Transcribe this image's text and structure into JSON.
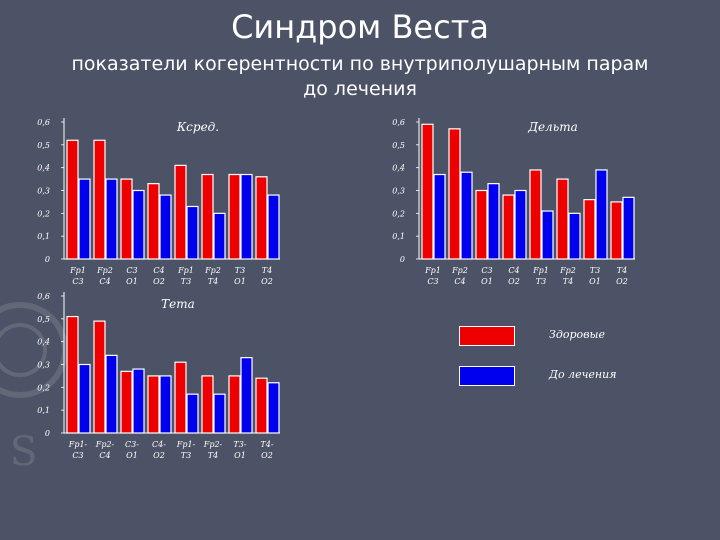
{
  "page": {
    "title": "Синдром Веста",
    "subtitle_line1": "показатели когерентности по внутриполушарным парам",
    "subtitle_line2": "до лечения"
  },
  "colors": {
    "healthy": "#ee0000",
    "before": "#0000ee",
    "background": "#4d5366",
    "text": "#ffffff"
  },
  "legend": {
    "healthy_label": "Здоровые",
    "before_label": "До лечения"
  },
  "chart_data": [
    {
      "id": "kcred",
      "type": "bar",
      "title": "Кcред.",
      "ylim": [
        0,
        0.6
      ],
      "yticks": [
        "0",
        "0,1",
        "0,2",
        "0,3",
        "0,4",
        "0,5",
        "0,6"
      ],
      "categories": [
        "Fp1 C3",
        "Fp2 C4",
        "C3 O1",
        "C4 O2",
        "Fp1 T3",
        "Fp2 T4",
        "T3 O1",
        "T4 O2"
      ],
      "series": [
        {
          "name": "Здоровые",
          "values": [
            0.52,
            0.52,
            0.35,
            0.33,
            0.41,
            0.37,
            0.37,
            0.36
          ]
        },
        {
          "name": "До лечения",
          "values": [
            0.35,
            0.35,
            0.3,
            0.28,
            0.23,
            0.2,
            0.37,
            0.28
          ]
        }
      ]
    },
    {
      "id": "delta",
      "type": "bar",
      "title": "Дельта",
      "ylim": [
        0,
        0.6
      ],
      "yticks": [
        "0",
        "0,1",
        "0,2",
        "0,3",
        "0,4",
        "0,5",
        "0,6"
      ],
      "categories": [
        "Fp1 C3",
        "Fp2 C4",
        "C3 O1",
        "C4 O2",
        "Fp1 T3",
        "Fp2 T4",
        "T3 O1",
        "T4 O2"
      ],
      "series": [
        {
          "name": "Здоровые",
          "values": [
            0.59,
            0.57,
            0.3,
            0.28,
            0.39,
            0.35,
            0.26,
            0.25
          ]
        },
        {
          "name": "До лечения",
          "values": [
            0.37,
            0.38,
            0.33,
            0.3,
            0.21,
            0.2,
            0.39,
            0.27
          ]
        }
      ]
    },
    {
      "id": "teta",
      "type": "bar",
      "title": "Тета",
      "ylim": [
        0,
        0.6
      ],
      "yticks": [
        "0",
        "0,1",
        "0,2",
        "0,3",
        "0,4",
        "0,5",
        "0,6"
      ],
      "categories": [
        "Fp1- C3",
        "Fp2- C4",
        "C3- O1",
        "C4- O2",
        "Fp1- T3",
        "Fp2- T4",
        "T3- O1",
        "T4- O2"
      ],
      "series": [
        {
          "name": "Здоровые",
          "values": [
            0.51,
            0.49,
            0.27,
            0.25,
            0.31,
            0.25,
            0.25,
            0.24
          ]
        },
        {
          "name": "До лечения",
          "values": [
            0.3,
            0.34,
            0.28,
            0.25,
            0.17,
            0.17,
            0.33,
            0.22
          ]
        }
      ]
    }
  ]
}
